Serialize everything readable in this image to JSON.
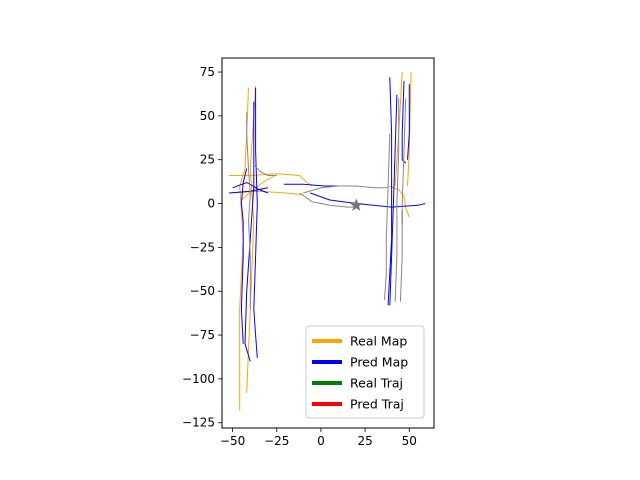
{
  "chart_data": {
    "type": "line",
    "title": "",
    "xlabel": "",
    "ylabel": "",
    "xlim": [
      -56,
      64
    ],
    "ylim": [
      -128,
      83
    ],
    "xticks": [
      -50,
      -25,
      0,
      25,
      50
    ],
    "yticks": [
      75,
      50,
      25,
      0,
      -25,
      -50,
      -75,
      -100,
      -125
    ],
    "aspect": "equal",
    "grid": false,
    "legend_position": "lower-right",
    "legend": [
      {
        "label": "Real Map",
        "color": "#FFA500"
      },
      {
        "label": "Pred Map",
        "color": "#0000FF"
      },
      {
        "label": "Real Traj",
        "color": "#008000"
      },
      {
        "label": "Pred Traj",
        "color": "#FF0000"
      }
    ],
    "series": [
      {
        "name": "Real Map",
        "color": "#FFA500",
        "polylines": [
          [
            [
              -46,
              -118
            ],
            [
              -46,
              -60
            ],
            [
              -44,
              -20
            ],
            [
              -46,
              10
            ],
            [
              -43,
              20
            ],
            [
              -42,
              40
            ],
            [
              -41,
              66
            ]
          ],
          [
            [
              -42,
              -108
            ],
            [
              -40,
              -60
            ],
            [
              -38,
              -10
            ],
            [
              -40,
              20
            ],
            [
              -38,
              50
            ],
            [
              -37,
              67
            ]
          ],
          [
            [
              -52,
              16
            ],
            [
              -40,
              16
            ],
            [
              -25,
              17
            ],
            [
              -12,
              16
            ],
            [
              -8,
              12
            ],
            [
              -5,
              10
            ]
          ],
          [
            [
              -52,
              6
            ],
            [
              -35,
              7
            ],
            [
              -20,
              6
            ],
            [
              -10,
              5
            ]
          ],
          [
            [
              -45,
              2
            ],
            [
              -38,
              8
            ],
            [
              -33,
              12
            ],
            [
              -26,
              16
            ]
          ],
          [
            [
              38,
              10
            ],
            [
              44,
              8
            ],
            [
              47,
              4
            ],
            [
              48,
              -2
            ],
            [
              50,
              -8
            ]
          ],
          [
            [
              46,
              75
            ],
            [
              44,
              40
            ],
            [
              42,
              10
            ]
          ],
          [
            [
              51,
              75
            ],
            [
              50,
              30
            ],
            [
              49,
              10
            ]
          ]
        ]
      },
      {
        "name": "Pred Map",
        "color": "#0000FF",
        "polylines": [
          [
            [
              -44,
              -80
            ],
            [
              -45,
              -60
            ],
            [
              -44,
              -30
            ],
            [
              -44,
              -10
            ],
            [
              -45,
              0
            ],
            [
              -44,
              12
            ],
            [
              -42,
              20
            ]
          ],
          [
            [
              -40,
              -90
            ],
            [
              -43,
              -80
            ],
            [
              -42,
              -50
            ],
            [
              -40,
              -20
            ],
            [
              -38,
              10
            ],
            [
              -38,
              40
            ],
            [
              -38,
              58
            ]
          ],
          [
            [
              -36,
              -88
            ],
            [
              -37,
              -75
            ],
            [
              -38,
              -60
            ],
            [
              -37,
              -30
            ],
            [
              -36,
              0
            ],
            [
              -37,
              30
            ],
            [
              -37,
              66
            ]
          ],
          [
            [
              -52,
              6
            ],
            [
              -40,
              7
            ],
            [
              -30,
              9
            ]
          ],
          [
            [
              -50,
              9
            ],
            [
              -42,
              12
            ],
            [
              -35,
              8
            ],
            [
              -30,
              6
            ]
          ],
          [
            [
              -21,
              11
            ],
            [
              -10,
              11
            ],
            [
              2,
              10
            ],
            [
              10,
              10
            ]
          ],
          [
            [
              -6,
              6
            ],
            [
              5,
              2
            ],
            [
              20,
              0
            ],
            [
              40,
              -2
            ],
            [
              55,
              -1
            ],
            [
              59,
              0
            ]
          ],
          [
            [
              39,
              72
            ],
            [
              40,
              40
            ],
            [
              40,
              10
            ],
            [
              40,
              -20
            ],
            [
              38,
              -58
            ]
          ],
          [
            [
              43,
              62
            ],
            [
              42,
              30
            ],
            [
              41,
              0
            ],
            [
              40,
              -30
            ],
            [
              39,
              -58
            ]
          ],
          [
            [
              47,
              70
            ],
            [
              46,
              40
            ],
            [
              46,
              25
            ],
            [
              48,
              23
            ]
          ],
          [
            [
              50,
              68
            ],
            [
              50,
              40
            ],
            [
              49,
              25
            ]
          ]
        ]
      },
      {
        "name": "Real Traj",
        "color": "#008000",
        "polylines": []
      },
      {
        "name": "Pred Traj",
        "color": "#FF0000",
        "polylines": [
          [
            [
              46,
              -4
            ],
            [
              46,
              -12
            ]
          ]
        ]
      },
      {
        "name": "",
        "color": "#888888",
        "polylines": [
          [
            [
              -42,
              52
            ],
            [
              -42,
              40
            ],
            [
              -41,
              20
            ],
            [
              -40,
              5
            ],
            [
              -41,
              -10
            ],
            [
              -40,
              -30
            ],
            [
              -40,
              -60
            ]
          ],
          [
            [
              -38,
              22
            ],
            [
              -34,
              18
            ],
            [
              -30,
              16
            ],
            [
              -25,
              16
            ]
          ],
          [
            [
              -10,
              6
            ],
            [
              0,
              9
            ],
            [
              10,
              10
            ],
            [
              20,
              10
            ],
            [
              30,
              9
            ],
            [
              38,
              9
            ]
          ],
          [
            [
              -12,
              6
            ],
            [
              -5,
              1
            ],
            [
              5,
              -1
            ],
            [
              15,
              -2
            ],
            [
              20,
              -2
            ]
          ],
          [
            [
              39,
              40
            ],
            [
              38,
              10
            ],
            [
              37,
              -20
            ],
            [
              37,
              -40
            ],
            [
              36,
              -55
            ]
          ],
          [
            [
              44,
              60
            ],
            [
              44,
              30
            ],
            [
              43,
              0
            ],
            [
              43,
              -30
            ],
            [
              42,
              -56
            ]
          ],
          [
            [
              48,
              60
            ],
            [
              47,
              30
            ],
            [
              46,
              0
            ],
            [
              46,
              -30
            ],
            [
              45,
              -56
            ]
          ]
        ]
      }
    ],
    "ego_marker": {
      "symbol": "star",
      "x": 20,
      "y": -1,
      "color": "#777777"
    }
  }
}
